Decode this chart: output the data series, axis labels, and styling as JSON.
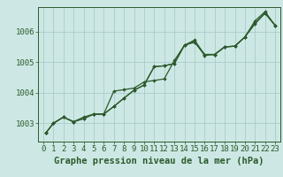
{
  "title": "Graphe pression niveau de la mer (hPa)",
  "bg_color": "#cde8e4",
  "grid_color": "#a8ccc8",
  "line_color": "#2d5a2d",
  "marker_color": "#2d5a2d",
  "xlim": [
    -0.5,
    23.5
  ],
  "ylim": [
    1002.4,
    1006.8
  ],
  "yticks": [
    1003,
    1004,
    1005,
    1006
  ],
  "xticks": [
    0,
    1,
    2,
    3,
    4,
    5,
    6,
    7,
    8,
    9,
    10,
    11,
    12,
    13,
    14,
    15,
    16,
    17,
    18,
    19,
    20,
    21,
    22,
    23
  ],
  "series": [
    {
      "x": [
        0.3,
        1,
        2,
        3,
        4,
        5,
        6,
        7,
        8,
        9,
        10,
        11,
        12,
        13,
        14,
        15,
        16,
        17,
        18,
        19,
        20,
        21,
        22,
        23
      ],
      "y": [
        1002.7,
        1003.0,
        1003.2,
        1003.05,
        1003.2,
        1003.3,
        1003.3,
        1004.05,
        1004.1,
        1004.15,
        1004.35,
        1004.4,
        1004.45,
        1005.05,
        1005.55,
        1005.65,
        1005.25,
        1005.25,
        1005.5,
        1005.52,
        1005.82,
        1006.35,
        1006.65,
        1006.2
      ]
    },
    {
      "x": [
        0.3,
        1,
        2,
        3,
        4,
        5,
        6,
        7,
        8,
        9,
        10,
        11,
        12,
        13,
        14,
        15,
        16,
        17,
        18,
        19,
        20,
        21,
        22,
        23
      ],
      "y": [
        1002.7,
        1003.0,
        1003.2,
        1003.05,
        1003.15,
        1003.3,
        1003.3,
        1003.55,
        1003.82,
        1004.08,
        1004.25,
        1004.85,
        1004.88,
        1004.95,
        1005.55,
        1005.72,
        1005.25,
        1005.25,
        1005.5,
        1005.52,
        1005.82,
        1006.25,
        1006.6,
        1006.2
      ]
    },
    {
      "x": [
        0.3,
        1,
        2,
        3,
        4,
        5,
        6,
        7,
        8,
        9,
        10,
        11,
        12,
        13,
        14,
        15,
        16,
        17,
        18,
        19,
        20,
        21,
        22,
        23
      ],
      "y": [
        1002.7,
        1003.0,
        1003.2,
        1003.05,
        1003.15,
        1003.3,
        1003.3,
        1003.55,
        1003.82,
        1004.08,
        1004.25,
        1004.85,
        1004.88,
        1004.95,
        1005.55,
        1005.68,
        1005.22,
        1005.25,
        1005.5,
        1005.52,
        1005.82,
        1006.28,
        1006.6,
        1006.2
      ]
    }
  ],
  "tick_fontsize": 6.5,
  "title_fontsize": 7.5
}
